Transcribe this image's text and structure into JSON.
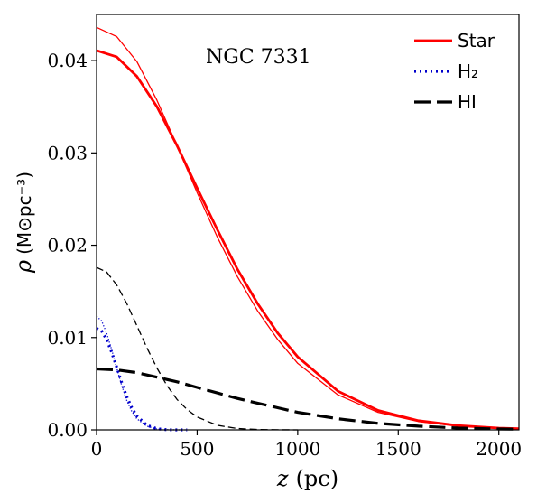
{
  "chart_data": {
    "type": "line",
    "title": "",
    "annotation": "NGC 7331",
    "xlabel_symbol": "z",
    "xlabel_unit": "(pc)",
    "ylabel_symbol": "ρ",
    "ylabel_unit": "(M⊙pc⁻³)",
    "xlim": [
      0,
      2100
    ],
    "ylim": [
      0,
      0.045
    ],
    "x_ticks": [
      0,
      500,
      1000,
      1500,
      2000
    ],
    "x_tick_labels": [
      "0",
      "500",
      "1000",
      "1500",
      "2000"
    ],
    "y_ticks": [
      0,
      0.01,
      0.02,
      0.03,
      0.04
    ],
    "y_tick_labels": [
      "0.00",
      "0.01",
      "0.02",
      "0.03",
      "0.04"
    ],
    "grid": false,
    "legend_position": "top-right",
    "legend": [
      {
        "label": "Star",
        "color": "#ff0000",
        "style": "solid"
      },
      {
        "label": "H₂",
        "color": "#0000cc",
        "style": "dotted"
      },
      {
        "label": "HI",
        "color": "#000000",
        "style": "dashed"
      }
    ],
    "series": [
      {
        "key": "star-thin",
        "color": "#ff0000",
        "style": "solid",
        "weight": "thin",
        "x": [
          0,
          100,
          200,
          300,
          400,
          500,
          600,
          700,
          800,
          900,
          1000,
          1200,
          1400,
          1600,
          1800,
          2000,
          2100
        ],
        "y": [
          0.0436,
          0.0426,
          0.0399,
          0.0357,
          0.0308,
          0.0257,
          0.0209,
          0.0166,
          0.0129,
          0.0098,
          0.0072,
          0.0038,
          0.0019,
          0.0009,
          0.0004,
          0.00018,
          0.00012
        ]
      },
      {
        "key": "star-thick",
        "color": "#ff0000",
        "style": "solid",
        "weight": "thick",
        "x": [
          0,
          100,
          200,
          300,
          400,
          500,
          600,
          700,
          800,
          900,
          1000,
          1200,
          1400,
          1600,
          1800,
          2000,
          2100
        ],
        "y": [
          0.0411,
          0.0404,
          0.0383,
          0.035,
          0.0308,
          0.0262,
          0.0217,
          0.0174,
          0.0137,
          0.0105,
          0.0079,
          0.0042,
          0.0021,
          0.001,
          0.00046,
          0.0002,
          0.00013
        ]
      },
      {
        "key": "h2-thin",
        "color": "#0000cc",
        "style": "dotted",
        "weight": "thin",
        "x": [
          0,
          25,
          50,
          75,
          100,
          125,
          150,
          175,
          200,
          250,
          300,
          350,
          400,
          450
        ],
        "y": [
          0.0123,
          0.0118,
          0.0105,
          0.0087,
          0.0067,
          0.0048,
          0.0032,
          0.002,
          0.0012,
          0.0004,
          0.0001,
          2e-05,
          0.0,
          0.0
        ]
      },
      {
        "key": "h2-thick",
        "color": "#0000cc",
        "style": "dotted",
        "weight": "thick",
        "x": [
          0,
          25,
          50,
          75,
          100,
          125,
          150,
          175,
          200,
          250,
          300,
          350,
          400,
          450
        ],
        "y": [
          0.011,
          0.0107,
          0.0098,
          0.0084,
          0.0068,
          0.0051,
          0.0036,
          0.0024,
          0.0015,
          0.0005,
          0.00012,
          2e-05,
          0.0,
          0.0
        ]
      },
      {
        "key": "hi-thin",
        "color": "#000000",
        "style": "dashed",
        "weight": "thin",
        "x": [
          0,
          50,
          100,
          150,
          200,
          250,
          300,
          350,
          400,
          450,
          500,
          600,
          700,
          800,
          900,
          1000
        ],
        "y": [
          0.0176,
          0.0171,
          0.0157,
          0.0137,
          0.0113,
          0.0089,
          0.0067,
          0.0048,
          0.0033,
          0.0022,
          0.0014,
          0.0005,
          0.00015,
          4e-05,
          1e-05,
          0.0
        ]
      },
      {
        "key": "hi-thick",
        "color": "#000000",
        "style": "dashed",
        "weight": "thick",
        "x": [
          0,
          100,
          200,
          300,
          400,
          500,
          600,
          700,
          800,
          900,
          1000,
          1200,
          1400,
          1600,
          1800,
          2000,
          2100
        ],
        "y": [
          0.0066,
          0.0065,
          0.0062,
          0.0057,
          0.0052,
          0.0046,
          0.004,
          0.0034,
          0.0029,
          0.0024,
          0.0019,
          0.0012,
          0.0007,
          0.0004,
          0.0002,
          0.0001,
          7e-05
        ]
      }
    ]
  }
}
